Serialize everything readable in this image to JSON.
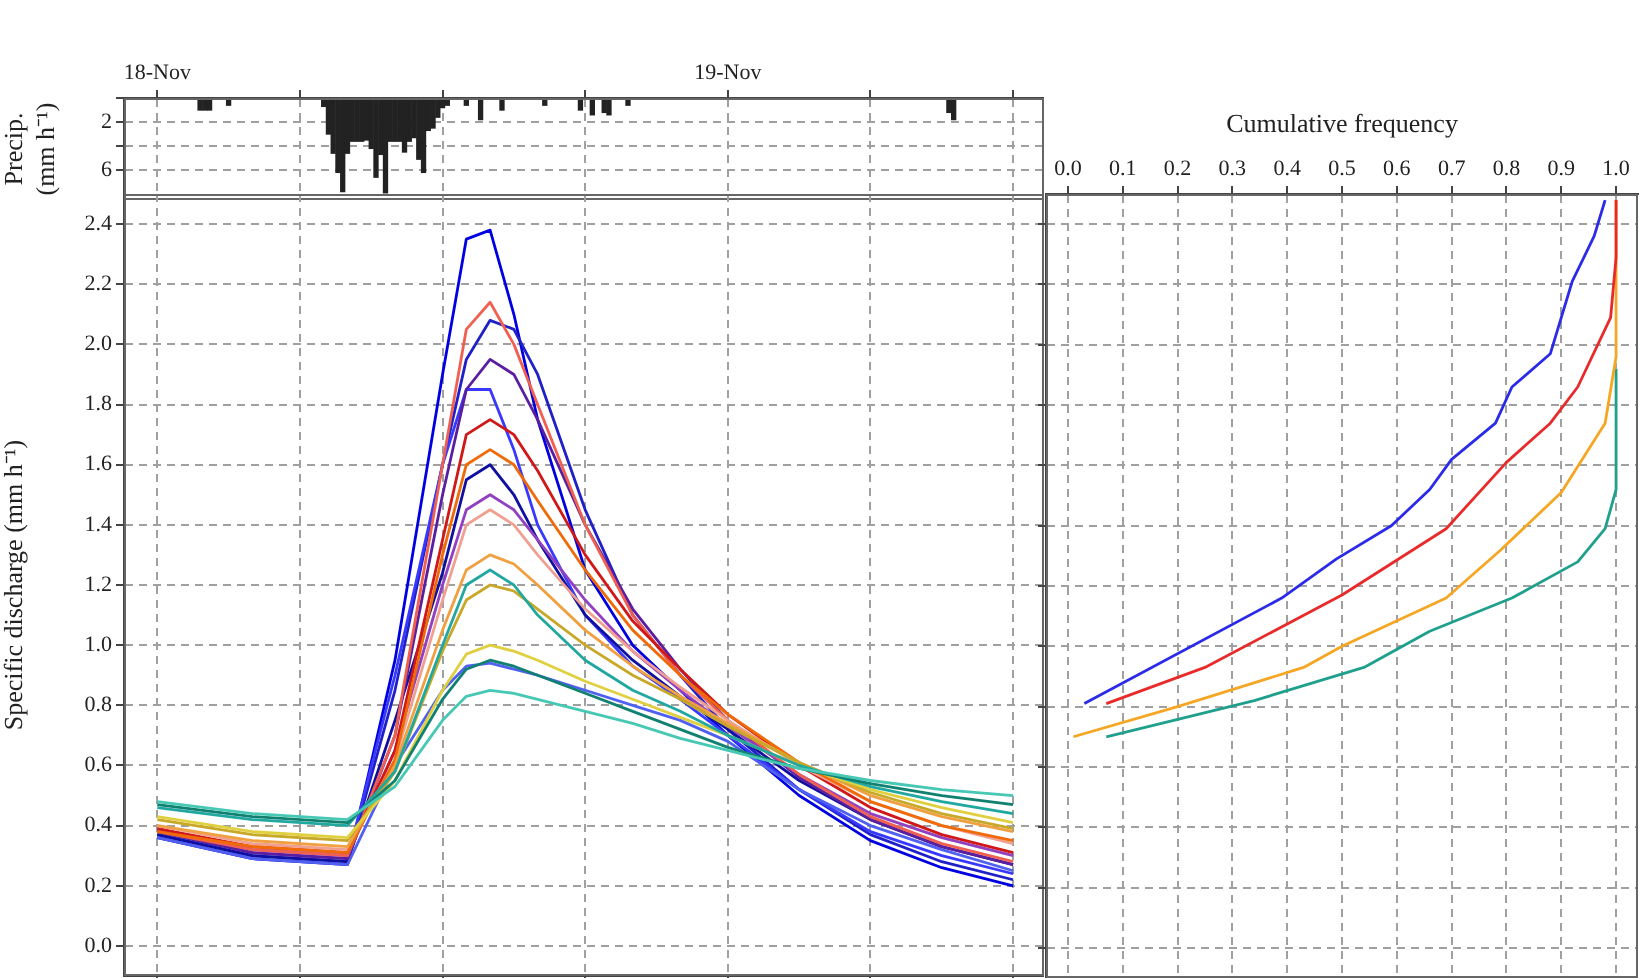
{
  "chart_data": [
    {
      "type": "bar",
      "ylabel": "Precip.\n(mm h⁻¹)",
      "color": "#222222",
      "x": [
        "--11-18T01:48",
        "--11-18T02:00",
        "--11-18T02:12",
        "--11-18T03:00",
        "--11-18T07:00",
        "--11-18T07:12",
        "--11-18T07:24",
        "--11-18T07:36",
        "--11-18T07:48",
        "--11-18T08:00",
        "--11-18T08:12",
        "--11-18T08:24",
        "--11-18T08:36",
        "--11-18T08:48",
        "--11-18T09:00",
        "--11-18T09:12",
        "--11-18T09:24",
        "--11-18T09:36",
        "--11-18T09:48",
        "--11-18T10:00",
        "--11-18T10:12",
        "--11-18T10:24",
        "--11-18T10:36",
        "--11-18T10:48",
        "--11-18T11:00",
        "--11-18T11:12",
        "--11-18T11:24",
        "--11-18T11:36",
        "--11-18T11:48",
        "--11-18T12:00",
        "--11-18T12:12",
        "--11-18T13:00",
        "--11-18T13:36",
        "--11-18T14:30",
        "--11-18T16:18",
        "--11-18T17:48",
        "--11-18T18:18",
        "--11-18T18:48",
        "--11-18T19:00",
        "--11-18T19:48",
        "--11-19T09:18",
        "--11-19T09:30"
      ],
      "values": [
        1.0,
        1.0,
        1.0,
        0.6,
        0.7,
        3.0,
        4.6,
        6.2,
        7.8,
        4.6,
        3.6,
        3.6,
        3.6,
        3.5,
        4.2,
        6.6,
        4.7,
        7.9,
        3.6,
        3.6,
        3.6,
        4.5,
        3.6,
        3.3,
        5.1,
        6.2,
        2.7,
        2.5,
        1.6,
        0.8,
        0.6,
        0.6,
        1.8,
        1.0,
        0.6,
        1.0,
        1.4,
        1.2,
        1.4,
        0.6,
        1.2,
        1.8
      ],
      "xlim": [
        "--11-17T22:36",
        "--11-19T13:18"
      ],
      "xticks": [
        {
          "value": "--11-18",
          "label": "18-Nov"
        },
        {
          "value": "--11-18T06:00",
          "label": null
        },
        {
          "value": "--11-18T12:00",
          "label": null
        },
        {
          "value": "--11-18T18:00",
          "label": null
        },
        {
          "value": "--11-19",
          "label": "19-Nov"
        },
        {
          "value": "--11-19T06:00",
          "label": null
        },
        {
          "value": "--11-19T12:00",
          "label": null
        }
      ],
      "ylim": [
        8.5,
        0
      ],
      "yticks": [
        {
          "value": 0,
          "label": null
        },
        2,
        {
          "value": 4,
          "label": null
        },
        6
      ],
      "grid": true
    },
    {
      "type": "line",
      "ylabel": "Specific discharge (mm h⁻¹)",
      "tick_labels": "y",
      "grid": true,
      "x": [
        "--11-18T00:00",
        "--11-18T04:00",
        "--11-18T08:00",
        "--11-18T10:00",
        "--11-18T12:00",
        "--11-18T13:00",
        "--11-18T14:00",
        "--11-18T15:00",
        "--11-18T16:00",
        "--11-18T18:00",
        "--11-18T20:00",
        "--11-18T22:00",
        "--11-19T00:00",
        "--11-19T03:00",
        "--11-19T06:00",
        "--11-19T09:00",
        "--11-19T12:00"
      ],
      "xlim": [
        "--11-17T22:36",
        "--11-19T13:18"
      ],
      "xticks": [
        {
          "value": "--11-18",
          "label": null
        },
        {
          "value": "--11-18T06:00",
          "label": null
        },
        {
          "value": "--11-18T12:00",
          "label": null
        },
        {
          "value": "--11-18T18:00",
          "label": null
        },
        {
          "value": "--11-19",
          "label": null
        },
        {
          "value": "--11-19T06:00",
          "label": null
        },
        {
          "value": "--11-19T12:00",
          "label": null
        }
      ],
      "ylim": [
        -0.1,
        2.5
      ],
      "yticks": [
        {
          "value": 0,
          "label": "0.0"
        },
        {
          "value": 0.2,
          "label": "0.2"
        },
        {
          "value": 0.4,
          "label": "0.4"
        },
        {
          "value": 0.6,
          "label": "0.6"
        },
        {
          "value": 0.8,
          "label": "0.8"
        },
        {
          "value": 1,
          "label": "1.0"
        },
        {
          "value": 1.2,
          "label": "1.2"
        },
        {
          "value": 1.4,
          "label": "1.4"
        },
        {
          "value": 1.6,
          "label": "1.6"
        },
        {
          "value": 1.8,
          "label": "1.8"
        },
        {
          "value": 2,
          "label": "2.0"
        },
        {
          "value": 2.2,
          "label": "2.2"
        },
        {
          "value": 2.4,
          "label": "2.4"
        }
      ],
      "series": [
        {
          "color": "#46c8b4",
          "values": [
            0.48,
            0.44,
            0.42,
            0.53,
            0.75,
            0.83,
            0.85,
            0.84,
            0.82,
            0.78,
            0.74,
            0.69,
            0.65,
            0.59,
            0.55,
            0.52,
            0.5
          ]
        },
        {
          "color": "#108070",
          "values": [
            0.47,
            0.43,
            0.41,
            0.55,
            0.82,
            0.92,
            0.95,
            0.93,
            0.9,
            0.84,
            0.78,
            0.72,
            0.66,
            0.59,
            0.54,
            0.5,
            0.47
          ]
        },
        {
          "color": "#20a8a0",
          "values": [
            0.46,
            0.42,
            0.4,
            0.58,
            1.0,
            1.2,
            1.25,
            1.2,
            1.1,
            0.95,
            0.85,
            0.78,
            0.7,
            0.6,
            0.53,
            0.48,
            0.44
          ]
        },
        {
          "color": "#e0d040",
          "values": [
            0.43,
            0.38,
            0.36,
            0.55,
            0.85,
            0.97,
            1.0,
            0.98,
            0.95,
            0.88,
            0.82,
            0.76,
            0.7,
            0.6,
            0.52,
            0.46,
            0.41
          ]
        },
        {
          "color": "#c8a828",
          "values": [
            0.42,
            0.37,
            0.35,
            0.58,
            0.98,
            1.15,
            1.2,
            1.18,
            1.12,
            1.0,
            0.9,
            0.82,
            0.73,
            0.61,
            0.51,
            0.44,
            0.39
          ]
        },
        {
          "color": "#f0a040",
          "values": [
            0.4,
            0.35,
            0.33,
            0.6,
            1.05,
            1.25,
            1.3,
            1.27,
            1.2,
            1.05,
            0.93,
            0.83,
            0.74,
            0.61,
            0.5,
            0.43,
            0.38
          ]
        },
        {
          "color": "#f06a08",
          "values": [
            0.38,
            0.33,
            0.31,
            0.62,
            1.3,
            1.6,
            1.65,
            1.6,
            1.48,
            1.25,
            1.05,
            0.9,
            0.77,
            0.61,
            0.48,
            0.4,
            0.35
          ]
        },
        {
          "color": "#f0a090",
          "values": [
            0.4,
            0.34,
            0.32,
            0.62,
            1.15,
            1.4,
            1.45,
            1.4,
            1.3,
            1.12,
            0.98,
            0.86,
            0.75,
            0.6,
            0.48,
            0.4,
            0.34
          ]
        },
        {
          "color": "#d01818",
          "values": [
            0.39,
            0.33,
            0.31,
            0.65,
            1.35,
            1.7,
            1.75,
            1.7,
            1.58,
            1.3,
            1.08,
            0.92,
            0.77,
            0.6,
            0.46,
            0.37,
            0.31
          ]
        },
        {
          "color": "#f06050",
          "values": [
            0.38,
            0.32,
            0.3,
            0.7,
            1.6,
            2.05,
            2.14,
            2.0,
            1.8,
            1.4,
            1.1,
            0.9,
            0.75,
            0.57,
            0.43,
            0.34,
            0.28
          ]
        },
        {
          "color": "#9040c0",
          "values": [
            0.39,
            0.32,
            0.3,
            0.65,
            1.2,
            1.45,
            1.5,
            1.45,
            1.35,
            1.15,
            0.98,
            0.85,
            0.73,
            0.57,
            0.44,
            0.36,
            0.3
          ]
        },
        {
          "color": "#5a1fa0",
          "values": [
            0.38,
            0.31,
            0.29,
            0.7,
            1.5,
            1.85,
            1.95,
            1.9,
            1.75,
            1.4,
            1.12,
            0.92,
            0.75,
            0.56,
            0.42,
            0.33,
            0.27
          ]
        },
        {
          "color": "#5060f0",
          "values": [
            0.36,
            0.29,
            0.27,
            0.6,
            0.85,
            0.93,
            0.94,
            0.92,
            0.9,
            0.85,
            0.8,
            0.75,
            0.68,
            0.52,
            0.4,
            0.32,
            0.25
          ]
        },
        {
          "color": "#1010a0",
          "values": [
            0.37,
            0.3,
            0.28,
            0.75,
            1.24,
            1.55,
            1.6,
            1.5,
            1.35,
            1.1,
            0.95,
            0.83,
            0.72,
            0.55,
            0.42,
            0.33,
            0.27
          ]
        },
        {
          "color": "#3838ff",
          "values": [
            0.38,
            0.31,
            0.29,
            0.9,
            1.6,
            1.85,
            1.85,
            1.65,
            1.4,
            1.1,
            0.93,
            0.82,
            0.7,
            0.52,
            0.38,
            0.3,
            0.24
          ]
        },
        {
          "color": "#2020c8",
          "values": [
            0.37,
            0.3,
            0.28,
            0.85,
            1.6,
            1.95,
            2.08,
            2.05,
            1.9,
            1.45,
            1.1,
            0.9,
            0.72,
            0.52,
            0.37,
            0.28,
            0.22
          ]
        },
        {
          "color": "#0000e0",
          "values": [
            0.36,
            0.29,
            0.27,
            0.95,
            1.9,
            2.35,
            2.38,
            2.1,
            1.75,
            1.25,
            1.0,
            0.85,
            0.7,
            0.5,
            0.35,
            0.26,
            0.2
          ]
        }
      ]
    },
    {
      "type": "line",
      "xlabel": "Cumulative frequency",
      "tick_labels": "x",
      "grid": true,
      "xlim": [
        -0.04,
        1.04
      ],
      "xticks": [
        {
          "value": 0,
          "label": "0.0"
        },
        {
          "value": 0.1,
          "label": "0.1"
        },
        {
          "value": 0.2,
          "label": "0.2"
        },
        {
          "value": 0.3,
          "label": "0.3"
        },
        {
          "value": 0.4,
          "label": "0.4"
        },
        {
          "value": 0.5,
          "label": "0.5"
        },
        {
          "value": 0.6,
          "label": "0.6"
        },
        {
          "value": 0.7,
          "label": "0.7"
        },
        {
          "value": 0.8,
          "label": "0.8"
        },
        {
          "value": 0.9,
          "label": "0.9"
        },
        {
          "value": 1,
          "label": "1.0"
        }
      ],
      "ylim": [
        -0.1,
        2.5
      ],
      "yticks": [
        0,
        0.2,
        0.4,
        0.6,
        0.8,
        1,
        1.2,
        1.4,
        1.6,
        1.8,
        2,
        2.2,
        2.4
      ],
      "series": [
        {
          "color": "#2a2ae8",
          "x": [
            0.03,
            0.39,
            0.49,
            0.59,
            0.66,
            0.7,
            0.78,
            0.81,
            0.88,
            0.92,
            0.96,
            0.98
          ],
          "values": [
            0.81,
            1.16,
            1.29,
            1.4,
            1.52,
            1.62,
            1.74,
            1.86,
            1.97,
            2.21,
            2.36,
            2.48
          ]
        },
        {
          "color": "#e82a2a",
          "x": [
            0.07,
            0.25,
            0.5,
            0.69,
            0.8,
            0.88,
            0.93,
            0.99,
            1.0,
            1.0
          ],
          "values": [
            0.81,
            0.93,
            1.17,
            1.39,
            1.61,
            1.74,
            1.86,
            2.09,
            2.29,
            2.48
          ]
        },
        {
          "color": "#f5a623",
          "x": [
            0.01,
            0.2,
            0.43,
            0.5,
            0.69,
            0.79,
            0.9,
            0.98,
            1.0,
            1.0
          ],
          "values": [
            0.7,
            0.8,
            0.93,
            1.0,
            1.16,
            1.32,
            1.51,
            1.74,
            1.96,
            2.48
          ]
        },
        {
          "color": "#1fa08c",
          "x": [
            0.07,
            0.34,
            0.54,
            0.66,
            0.81,
            0.93,
            0.98,
            1.0,
            1.0
          ],
          "values": [
            0.7,
            0.82,
            0.93,
            1.05,
            1.16,
            1.28,
            1.39,
            1.52,
            1.92
          ]
        }
      ]
    }
  ]
}
